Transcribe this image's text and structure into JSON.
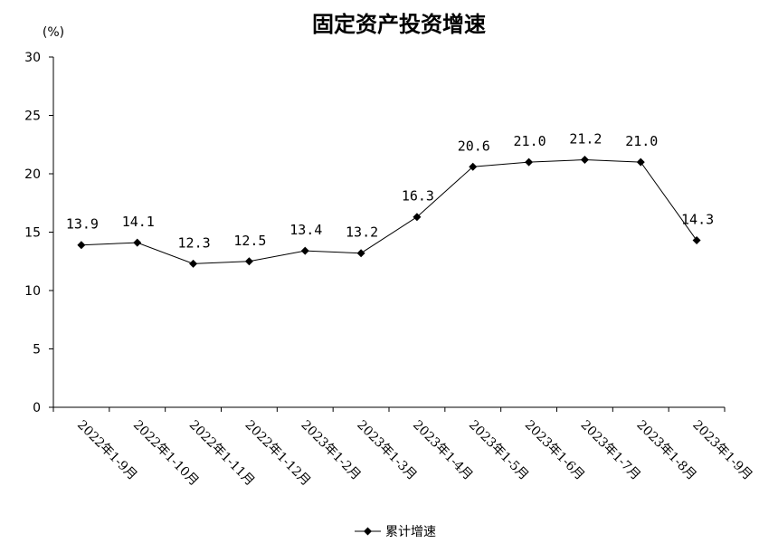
{
  "chart_data": {
    "type": "line",
    "title": "固定资产投资增速",
    "y_unit": "(%)",
    "ylim": [
      0,
      30
    ],
    "y_ticks": [
      0,
      5,
      10,
      15,
      20,
      25,
      30
    ],
    "grid": false,
    "legend_position": "bottom",
    "categories": [
      "2022年1-9月",
      "2022年1-10月",
      "2022年1-11月",
      "2022年1-12月",
      "2023年1-2月",
      "2023年1-3月",
      "2023年1-4月",
      "2023年1-5月",
      "2023年1-6月",
      "2023年1-7月",
      "2023年1-8月",
      "2023年1-9月"
    ],
    "series": [
      {
        "name": "累计增速",
        "color": "#000000",
        "marker": "diamond",
        "values": [
          13.9,
          14.1,
          12.3,
          12.5,
          13.4,
          13.2,
          16.3,
          20.6,
          21.0,
          21.2,
          21.0,
          14.3
        ],
        "labels": [
          "13.9",
          "14.1",
          "12.3",
          "12.5",
          "13.4",
          "13.2",
          "16.3",
          "20.6",
          "21.0",
          "21.2",
          "21.0",
          "14.3"
        ]
      }
    ]
  }
}
